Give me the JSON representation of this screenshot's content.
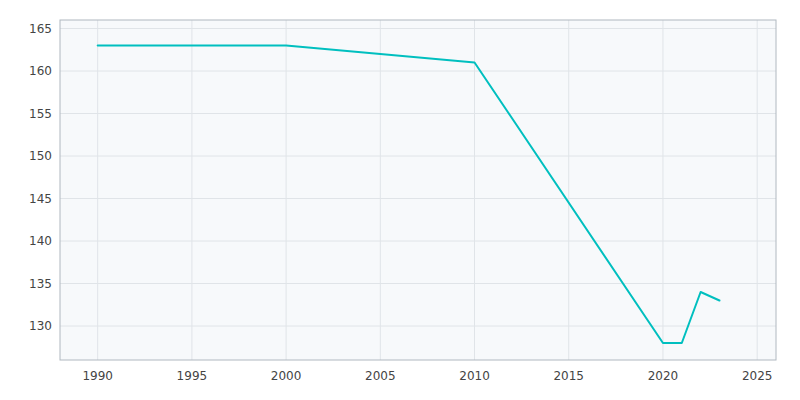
{
  "chart_data": {
    "type": "line",
    "x": [
      1990,
      2000,
      2010,
      2020,
      2021,
      2022,
      2023
    ],
    "values": [
      163,
      163,
      161,
      128,
      128,
      134,
      133
    ],
    "color": "#00BFBF",
    "xlim": [
      1988,
      2026
    ],
    "ylim": [
      126,
      166
    ],
    "xticks": [
      1990,
      1995,
      2000,
      2005,
      2010,
      2015,
      2020,
      2025
    ],
    "yticks": [
      130,
      135,
      140,
      145,
      150,
      155,
      160,
      165
    ],
    "grid": true
  }
}
